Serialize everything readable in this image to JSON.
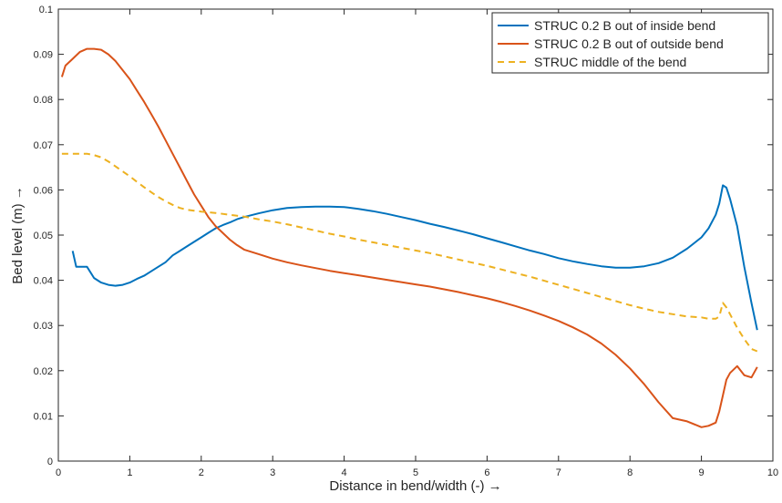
{
  "chart_data": {
    "type": "line",
    "title": "",
    "xlabel": "Distance in bend/width (-)  →",
    "ylabel": "Bed level (m)  →",
    "xlim": [
      0,
      10
    ],
    "ylim": [
      0,
      0.1
    ],
    "xticks": [
      0,
      1,
      2,
      3,
      4,
      5,
      6,
      7,
      8,
      9,
      10
    ],
    "yticks": [
      0,
      0.01,
      0.02,
      0.03,
      0.04,
      0.05,
      0.06,
      0.07,
      0.08,
      0.09,
      0.1
    ],
    "xtick_labels": [
      "0",
      "1",
      "2",
      "3",
      "4",
      "5",
      "6",
      "7",
      "8",
      "9",
      "10"
    ],
    "ytick_labels": [
      "0",
      "0.01",
      "0.02",
      "0.03",
      "0.04",
      "0.05",
      "0.06",
      "0.07",
      "0.08",
      "0.09",
      "0.1"
    ],
    "grid": false,
    "legend_position": "top-right",
    "series": [
      {
        "name": "STRUC 0.2 B out of inside bend",
        "color": "#0072BD",
        "dash": "solid",
        "x": [
          0.2,
          0.25,
          0.4,
          0.5,
          0.6,
          0.7,
          0.8,
          0.9,
          1.0,
          1.1,
          1.2,
          1.3,
          1.4,
          1.5,
          1.6,
          1.7,
          1.8,
          1.9,
          2.0,
          2.1,
          2.2,
          2.3,
          2.4,
          2.5,
          2.6,
          2.8,
          3.0,
          3.2,
          3.4,
          3.6,
          3.8,
          4.0,
          4.2,
          4.4,
          4.6,
          4.8,
          5.0,
          5.2,
          5.4,
          5.6,
          5.8,
          6.0,
          6.2,
          6.4,
          6.6,
          6.8,
          7.0,
          7.2,
          7.4,
          7.6,
          7.8,
          8.0,
          8.2,
          8.4,
          8.6,
          8.8,
          9.0,
          9.1,
          9.2,
          9.25,
          9.3,
          9.35,
          9.4,
          9.5,
          9.6,
          9.7,
          9.78
        ],
        "values": [
          0.0465,
          0.043,
          0.043,
          0.0405,
          0.0395,
          0.039,
          0.0388,
          0.039,
          0.0395,
          0.0403,
          0.041,
          0.042,
          0.043,
          0.044,
          0.0455,
          0.0465,
          0.0475,
          0.0485,
          0.0495,
          0.0505,
          0.0515,
          0.0522,
          0.0528,
          0.0535,
          0.054,
          0.0548,
          0.0555,
          0.056,
          0.0562,
          0.0563,
          0.0563,
          0.0562,
          0.0558,
          0.0553,
          0.0547,
          0.054,
          0.0533,
          0.0525,
          0.0518,
          0.051,
          0.0502,
          0.0493,
          0.0484,
          0.0475,
          0.0466,
          0.0458,
          0.0449,
          0.0442,
          0.0436,
          0.0431,
          0.0428,
          0.0428,
          0.0431,
          0.0438,
          0.045,
          0.047,
          0.0495,
          0.0515,
          0.0545,
          0.057,
          0.061,
          0.0605,
          0.058,
          0.052,
          0.043,
          0.035,
          0.029
        ]
      },
      {
        "name": "STRUC 0.2 B out of outside bend",
        "color": "#D95319",
        "dash": "solid",
        "x": [
          0.05,
          0.1,
          0.2,
          0.3,
          0.4,
          0.5,
          0.6,
          0.7,
          0.8,
          0.9,
          1.0,
          1.1,
          1.2,
          1.3,
          1.4,
          1.5,
          1.6,
          1.7,
          1.8,
          1.9,
          2.0,
          2.1,
          2.2,
          2.3,
          2.4,
          2.5,
          2.6,
          2.8,
          3.0,
          3.2,
          3.4,
          3.6,
          3.8,
          4.0,
          4.2,
          4.4,
          4.6,
          4.8,
          5.0,
          5.2,
          5.4,
          5.6,
          5.8,
          6.0,
          6.2,
          6.4,
          6.6,
          6.8,
          7.0,
          7.2,
          7.4,
          7.6,
          7.8,
          8.0,
          8.2,
          8.4,
          8.6,
          8.8,
          9.0,
          9.1,
          9.2,
          9.25,
          9.3,
          9.35,
          9.4,
          9.5,
          9.6,
          9.7,
          9.78
        ],
        "values": [
          0.085,
          0.0875,
          0.089,
          0.0905,
          0.0912,
          0.0912,
          0.091,
          0.09,
          0.0885,
          0.0865,
          0.0845,
          0.082,
          0.0795,
          0.0768,
          0.074,
          0.071,
          0.068,
          0.065,
          0.062,
          0.059,
          0.0565,
          0.054,
          0.052,
          0.0505,
          0.049,
          0.0478,
          0.0468,
          0.0458,
          0.0448,
          0.044,
          0.0433,
          0.0427,
          0.0421,
          0.0416,
          0.0411,
          0.0406,
          0.0401,
          0.0396,
          0.0391,
          0.0386,
          0.038,
          0.0374,
          0.0367,
          0.036,
          0.0352,
          0.0343,
          0.0333,
          0.0322,
          0.031,
          0.0296,
          0.028,
          0.026,
          0.0235,
          0.0205,
          0.017,
          0.013,
          0.0095,
          0.0088,
          0.0075,
          0.0078,
          0.0085,
          0.011,
          0.0145,
          0.018,
          0.0195,
          0.021,
          0.019,
          0.0185,
          0.0208
        ]
      },
      {
        "name": "STRUC middle of the bend",
        "color": "#EDB120",
        "dash": "dashed",
        "x": [
          0.05,
          0.2,
          0.3,
          0.4,
          0.5,
          0.6,
          0.7,
          0.8,
          0.9,
          1.0,
          1.1,
          1.2,
          1.3,
          1.4,
          1.5,
          1.6,
          1.7,
          1.8,
          1.9,
          2.0,
          2.2,
          2.4,
          2.6,
          2.8,
          3.0,
          3.2,
          3.4,
          3.6,
          3.8,
          4.0,
          4.2,
          4.4,
          4.6,
          4.8,
          5.0,
          5.2,
          5.4,
          5.6,
          5.8,
          6.0,
          6.2,
          6.4,
          6.6,
          6.8,
          7.0,
          7.2,
          7.4,
          7.6,
          7.8,
          8.0,
          8.2,
          8.4,
          8.6,
          8.8,
          9.0,
          9.1,
          9.2,
          9.25,
          9.3,
          9.35,
          9.4,
          9.5,
          9.6,
          9.7,
          9.78
        ],
        "values": [
          0.068,
          0.068,
          0.068,
          0.068,
          0.0677,
          0.0672,
          0.0663,
          0.0652,
          0.0641,
          0.063,
          0.0618,
          0.0606,
          0.0595,
          0.0584,
          0.0575,
          0.0567,
          0.056,
          0.0556,
          0.0554,
          0.0552,
          0.0549,
          0.0545,
          0.0541,
          0.0535,
          0.053,
          0.0524,
          0.0517,
          0.051,
          0.0503,
          0.0497,
          0.049,
          0.0484,
          0.0478,
          0.0472,
          0.0466,
          0.046,
          0.0453,
          0.0446,
          0.0439,
          0.0432,
          0.0424,
          0.0416,
          0.0408,
          0.0399,
          0.039,
          0.0381,
          0.0372,
          0.0363,
          0.0354,
          0.0345,
          0.0337,
          0.033,
          0.0325,
          0.032,
          0.0318,
          0.0315,
          0.0315,
          0.032,
          0.035,
          0.034,
          0.0325,
          0.0295,
          0.027,
          0.0248,
          0.0243
        ]
      }
    ]
  }
}
